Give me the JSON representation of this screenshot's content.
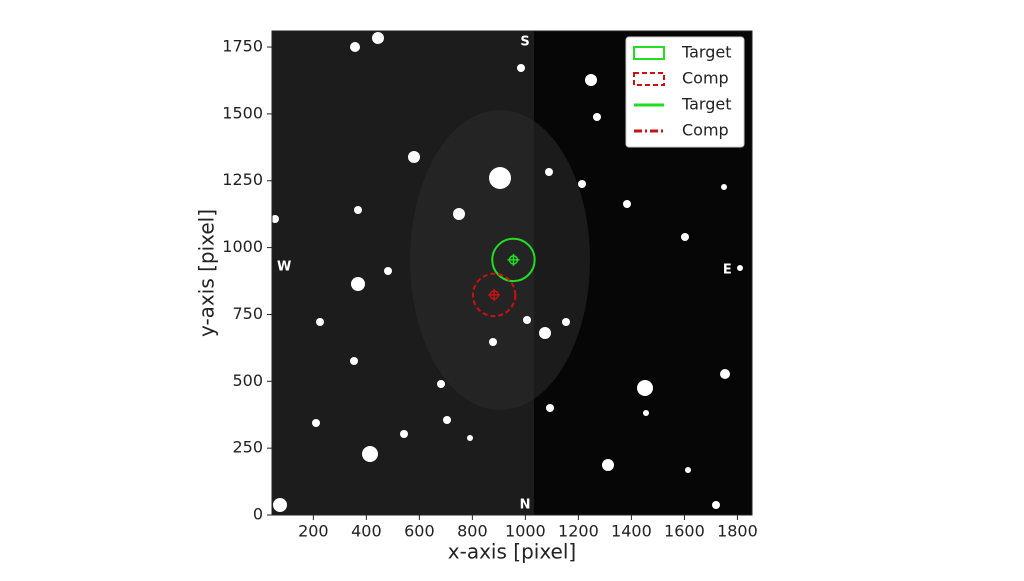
{
  "chart_data": {
    "type": "image",
    "xlabel": "x-axis [pixel]",
    "ylabel": "y-axis [pixel]",
    "xlim": [
      44,
      1855
    ],
    "ylim": [
      0,
      1810
    ],
    "xticks": [
      200,
      400,
      600,
      800,
      1000,
      1200,
      1400,
      1600,
      1800
    ],
    "yticks": [
      0,
      250,
      500,
      750,
      1000,
      1250,
      1500,
      1750
    ],
    "apertures": [
      {
        "color": "#22dd22",
        "x": 955,
        "y": 954,
        "radius": 80,
        "dashed": false
      },
      {
        "color": "#cc1111",
        "x": 882,
        "y": 823,
        "radius": 80,
        "dashed": true
      }
    ],
    "compass": [
      {
        "text": "S",
        "x": 999,
        "y": 1769
      },
      {
        "text": "N",
        "x": 999,
        "y": 37
      },
      {
        "text": "W",
        "x": 90,
        "y": 927
      },
      {
        "text": "E",
        "x": 1762,
        "y": 916
      }
    ],
    "legend": [
      {
        "label": "Target",
        "color": "#22dd22",
        "kind": "patch",
        "dashed": false
      },
      {
        "label": "Comp",
        "color": "#cc1111",
        "kind": "patch",
        "dashed": true
      },
      {
        "label": "Target",
        "color": "#22dd22",
        "kind": "line",
        "dashed": false
      },
      {
        "label": "Comp",
        "color": "#cc1111",
        "kind": "line",
        "dashed": true
      }
    ]
  }
}
